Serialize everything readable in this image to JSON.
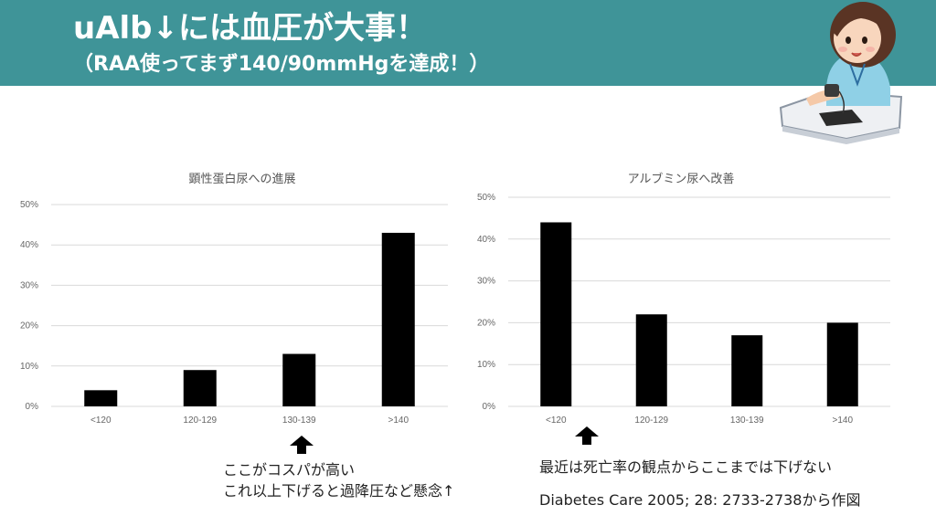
{
  "header": {
    "title": "uAlb↓には血圧が大事！",
    "subtitle": "（RAA使ってまず140/90mmHgを達成！）",
    "background": "#3f9498"
  },
  "illustration": {
    "icon": "nurse-blood-pressure-illustration"
  },
  "chart_data": [
    {
      "type": "bar",
      "title": "顕性蛋白尿への進展",
      "categories": [
        "<120",
        "120-129",
        "130-139",
        ">140"
      ],
      "values": [
        4,
        9,
        13,
        43
      ],
      "ylim": [
        0,
        50
      ],
      "yticks": [
        "0%",
        "10%",
        "20%",
        "30%",
        "40%",
        "50%"
      ],
      "grid": true,
      "bar_color": "#000000"
    },
    {
      "type": "bar",
      "title": "アルブミン尿へ改善",
      "categories": [
        "<120",
        "120-129",
        "130-139",
        ">140"
      ],
      "values": [
        44,
        22,
        17,
        20
      ],
      "ylim": [
        0,
        50
      ],
      "yticks": [
        "0%",
        "10%",
        "20%",
        "30%",
        "40%",
        "50%"
      ],
      "grid": true,
      "bar_color": "#000000"
    }
  ],
  "notes": {
    "left_line1": "ここがコスパが高い",
    "left_line2": "これ以上下げると過降圧など懸念↑",
    "right_line1": "最近は死亡率の観点からここまでは下げない",
    "citation": "Diabetes Care 2005; 28: 2733-2738から作図"
  }
}
